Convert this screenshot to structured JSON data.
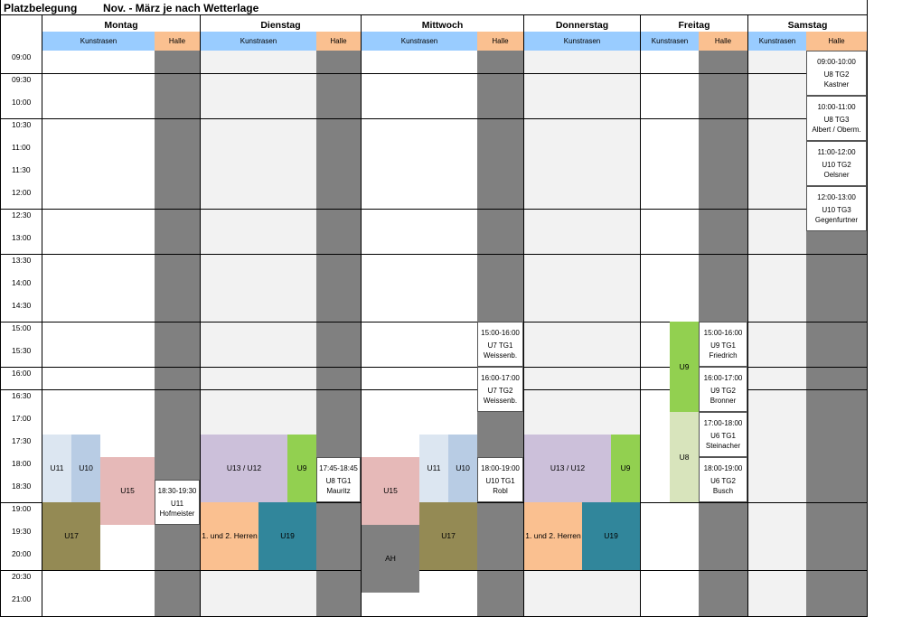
{
  "title": "Platzbelegung",
  "subtitle": "Nov. - März je nach Wetterlage",
  "days": [
    {
      "name": "Montag"
    },
    {
      "name": "Dienstag"
    },
    {
      "name": "Mittwoch"
    },
    {
      "name": "Donnerstag"
    },
    {
      "name": "Freitag"
    },
    {
      "name": "Samstag"
    }
  ],
  "col_labels": {
    "outdoor": "Kunstrasen",
    "hall": "Halle"
  },
  "times": [
    "09:00",
    "09:30",
    "10:00",
    "10:30",
    "11:00",
    "11:30",
    "12:00",
    "12:30",
    "13:00",
    "13:30",
    "14:00",
    "14:30",
    "15:00",
    "15:30",
    "16:00",
    "16:30",
    "17:00",
    "17:30",
    "18:00",
    "18:30",
    "19:00",
    "19:30",
    "20:00",
    "20:30",
    "21:00"
  ],
  "colors": {
    "outdoor_header": "#99ccff",
    "hall_header": "#fac090",
    "hall_fill": "#808080",
    "light_fill": "#f2f2f2",
    "u11": "#dce6f1",
    "u10": "#b8cce4",
    "u15": "#e6b9b8",
    "u17": "#948a54",
    "u13": "#ccc0da",
    "u9": "#92d050",
    "herren": "#fac090",
    "u19": "#31869b",
    "u8": "#d8e4bc"
  },
  "blocks": {
    "mo_u11": "U11",
    "mo_u10": "U10",
    "mo_u15": "U15",
    "mo_u17": "U17",
    "di_u13": "U13 / U12",
    "di_u9": "U9",
    "di_herren": "1. und 2. Herren",
    "di_u19": "U19",
    "mi_u15": "U15",
    "mi_u11": "U11",
    "mi_u10": "U10",
    "mi_u17": "U17",
    "mi_ah": "AH",
    "do_u13": "U13 / U12",
    "do_u9": "U9",
    "do_herren": "1. und 2. Herren",
    "do_u19": "U19",
    "fr_u9": "U9",
    "fr_u8": "U8"
  },
  "hall_slots": {
    "mo": {
      "time": "18:30-19:30",
      "team": "U11",
      "coach": "Hofmeister"
    },
    "di": {
      "time": "17:45-18:45",
      "team": "U8 TG1",
      "coach": "Mauritz"
    },
    "mi1": {
      "time": "15:00-16:00",
      "team": "U7 TG1",
      "coach": "Weissenb."
    },
    "mi2": {
      "time": "16:00-17:00",
      "team": "U7 TG2",
      "coach": "Weissenb."
    },
    "mi3": {
      "time": "18:00-19:00",
      "team": "U10 TG1",
      "coach": "Robl"
    },
    "fr1": {
      "time": "15:00-16:00",
      "team": "U9 TG1",
      "coach": "Friedrich"
    },
    "fr2": {
      "time": "16:00-17:00",
      "team": "U9 TG2",
      "coach": "Bronner"
    },
    "fr3": {
      "time": "17:00-18:00",
      "team": "U6 TG1",
      "coach": "Steinacher"
    },
    "fr4": {
      "time": "18:00-19:00",
      "team": "U6 TG2",
      "coach": "Busch"
    },
    "sa1": {
      "time": "09:00-10:00",
      "team": "U8 TG2",
      "coach": "Kastner"
    },
    "sa2": {
      "time": "10:00-11:00",
      "team": "U8 TG3",
      "coach": "Albert / Oberm."
    },
    "sa3": {
      "time": "11:00-12:00",
      "team": "U10 TG2",
      "coach": "Oelsner"
    },
    "sa4": {
      "time": "12:00-13:00",
      "team": "U10 TG3",
      "coach": "Gegenfurtner"
    }
  }
}
